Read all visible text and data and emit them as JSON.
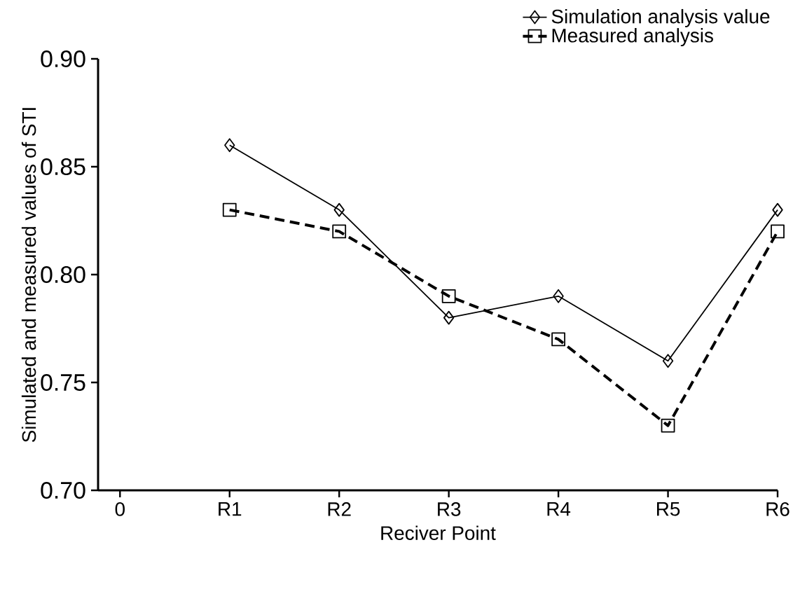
{
  "chart_data": {
    "type": "line",
    "xlabel": "Reciver Point",
    "ylabel": "Simulated and measured values of STI",
    "categories": [
      "0",
      "R1",
      "R2",
      "R3",
      "R4",
      "R5",
      "R6"
    ],
    "series": [
      {
        "name": "Simulation analysis value",
        "color": "#000000",
        "marker": "diamond",
        "line_style": "solid",
        "values": [
          null,
          0.86,
          0.83,
          0.78,
          0.79,
          0.76,
          0.83
        ]
      },
      {
        "name": "Measured analysis",
        "color": "#000000",
        "marker": "square",
        "line_style": "dashed",
        "values": [
          null,
          0.83,
          0.82,
          0.79,
          0.77,
          0.73,
          0.82
        ]
      }
    ],
    "ylim": [
      0.7,
      0.9
    ],
    "yticks": [
      {
        "value": 0.7,
        "label": "0.70"
      },
      {
        "value": 0.75,
        "label": "0.75"
      },
      {
        "value": 0.8,
        "label": "0.80"
      },
      {
        "value": 0.85,
        "label": "0.85"
      },
      {
        "value": 0.9,
        "label": "0.90"
      }
    ],
    "grid": false,
    "legend": "top right"
  }
}
